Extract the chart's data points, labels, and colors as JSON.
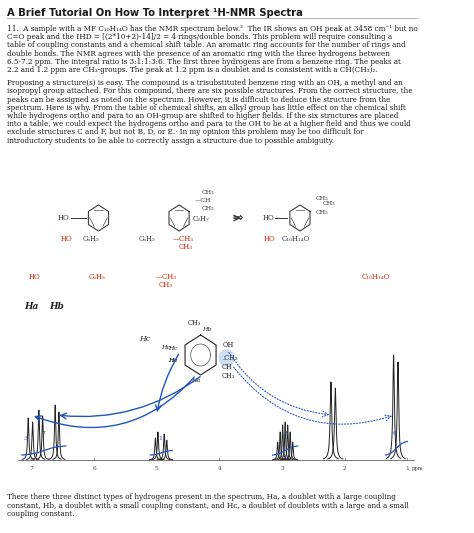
{
  "title": "A Brief Tutorial On How To Interpret ¹H-NMR Spectra",
  "p1_line1": "11.  A sample with a MF C₁₀H₁₄O has the NMR spectrum below.²  The IR shows an OH peak at 3458 cm⁻¹ but no",
  "p1_line2": "C=O peak and the IHD = [(2*10+2)-14]/2 = 4 rings/double bonds. This problem will require consulting a",
  "p1_line3": "table of coupling constants and a chemical shift table. An aromatic ring accounts for the number of rings and",
  "p1_line4": "double bonds. The NMR agrees with the presence of an aromatic ring with the three hydrogens between",
  "p1_line5": "6.5-7.2 ppm. The integral ratio is 3:1:1:3:6. The first three hydrogens are from a benzene ring. The peaks at",
  "p1_line6": "2.2 and 1.2 ppm are CH₃-groups. The peak at 1.2 ppm is a doublet and is consistent with a CH(CH₃)₂.",
  "p2_line1": "Proposing a structure(s) is easy. The compound is a trisubstituted benzene ring with an OH, a methyl and an",
  "p2_line2": "isopropyl group attached. For this compound, there are six possible structures. From the correct structure, the",
  "p2_line3": "peaks can be assigned as noted on the spectrum. However, it is difficult to deduce the structure from the",
  "p2_line4": "spectrum. Here is why. From the table of chemical shifts, an alkyl group has little effect on the chemical shift",
  "p2_line5": "while hydrogens ortho and para to an OH-group are shifted to higher fields. If the six structures are placed",
  "p2_line6": "into a table, we could expect the hydrogens ortho and para to the OH to be at a higher field and thus we could",
  "p2_line7": "exclude structures C and F, but not B, D, or E.· In my opinion this problem may be too difficult for",
  "p2_line8": "introductory students to be able to correctly assign a structure due to possible ambiguity.",
  "footer_line1": "There there three distinct types of hydrogens present in the spectrum, Ha, a doublet with a large coupling",
  "footer_line2": "constant, Hb, a doublet with a small coupling constant, and Hc, a doublet of doublets with a large and a small",
  "footer_line3": "coupling constant.",
  "bg_color": "#ffffff",
  "text_color": "#1a1a1a",
  "red_color": "#cc2200",
  "blue_color": "#2255bb",
  "blue_dot": "#5599dd",
  "peak_color": "#222222",
  "struct_color": "#333333"
}
